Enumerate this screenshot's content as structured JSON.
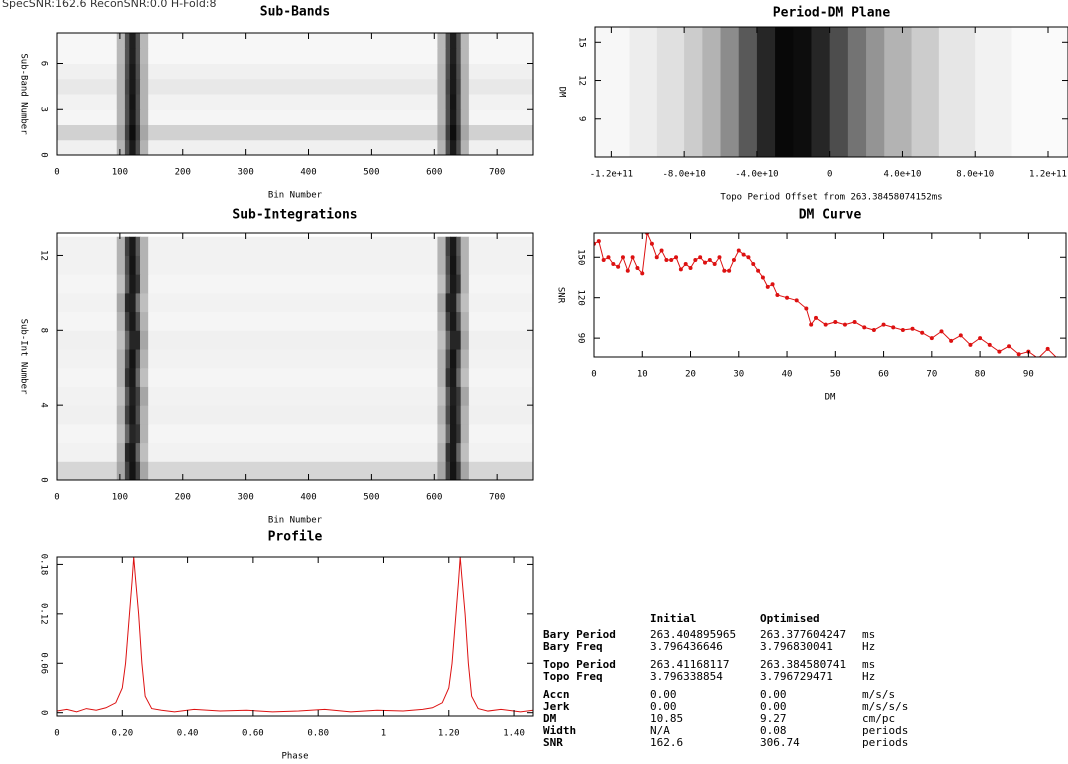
{
  "header": "SpecSNR:162.6   ReconSNR:0.0   H-Fold:8",
  "chart_data": [
    {
      "type": "heatmap",
      "title": "Sub-Bands",
      "x_label": "Bin Number",
      "y_label": "Sub-Band Number",
      "xlim": [
        0,
        757
      ],
      "ylim": [
        0,
        8
      ],
      "xticks": [
        0,
        100,
        200,
        300,
        400,
        500,
        600,
        700
      ],
      "yticks": [
        0,
        3,
        6
      ],
      "x_edges": [
        0,
        95,
        108,
        115,
        125,
        132,
        145,
        605,
        618,
        625,
        635,
        642,
        655,
        757
      ],
      "y_edges": [
        0,
        1,
        2,
        3,
        4,
        5,
        6,
        7,
        8
      ],
      "z": [
        [
          0.06,
          0.3,
          0.7,
          0.9,
          0.7,
          0.3,
          0.06,
          0.3,
          0.7,
          0.9,
          0.7,
          0.3,
          0.06
        ],
        [
          0.18,
          0.35,
          0.75,
          0.95,
          0.75,
          0.35,
          0.18,
          0.35,
          0.75,
          0.95,
          0.75,
          0.35,
          0.18
        ],
        [
          0.04,
          0.3,
          0.7,
          0.9,
          0.7,
          0.3,
          0.04,
          0.3,
          0.7,
          0.9,
          0.7,
          0.3,
          0.04
        ],
        [
          0.05,
          0.3,
          0.7,
          0.92,
          0.7,
          0.3,
          0.05,
          0.3,
          0.7,
          0.92,
          0.7,
          0.3,
          0.05
        ],
        [
          0.09,
          0.3,
          0.72,
          0.9,
          0.72,
          0.3,
          0.09,
          0.3,
          0.72,
          0.9,
          0.72,
          0.3,
          0.09
        ],
        [
          0.06,
          0.3,
          0.7,
          0.9,
          0.7,
          0.3,
          0.06,
          0.3,
          0.7,
          0.9,
          0.7,
          0.3,
          0.06
        ],
        [
          0.03,
          0.28,
          0.68,
          0.88,
          0.68,
          0.28,
          0.03,
          0.28,
          0.68,
          0.88,
          0.68,
          0.28,
          0.03
        ],
        [
          0.03,
          0.28,
          0.68,
          0.88,
          0.68,
          0.28,
          0.03,
          0.28,
          0.68,
          0.88,
          0.68,
          0.28,
          0.03
        ]
      ]
    },
    {
      "type": "heatmap",
      "title": "Period-DM Plane",
      "x_label": "Topo Period Offset from 263.38458074152ms",
      "y_label": "DM",
      "xlim": [
        -129000000000,
        131000000000
      ],
      "ylim": [
        6,
        16.2
      ],
      "xticks": [
        {
          "value": -120000000000,
          "label": "-1.2e+11"
        },
        {
          "value": -80000000000,
          "label": "-8.0e+10"
        },
        {
          "value": -40000000000,
          "label": "-4.0e+10"
        },
        0,
        {
          "value": 40000000000,
          "label": "4.0e+10"
        },
        {
          "value": 80000000000,
          "label": "8.0e+10"
        },
        {
          "value": 120000000000,
          "label": "1.2e+11"
        }
      ],
      "yticks": [
        9,
        12,
        15
      ],
      "x_edges": [
        -129000000000,
        -110000000000,
        -95000000000,
        -80000000000,
        -70000000000,
        -60000000000,
        -50000000000,
        -40000000000,
        -30000000000,
        -20000000000,
        -10000000000,
        0,
        10000000000,
        20000000000,
        30000000000,
        45000000000,
        60000000000,
        80000000000,
        100000000000,
        131000000000
      ],
      "y_edges": [
        6,
        16.2
      ],
      "z": [
        [
          0.03,
          0.07,
          0.12,
          0.2,
          0.3,
          0.45,
          0.65,
          0.85,
          0.97,
          0.95,
          0.85,
          0.7,
          0.55,
          0.42,
          0.3,
          0.2,
          0.1,
          0.05,
          0.02
        ]
      ]
    },
    {
      "type": "heatmap",
      "title": "Sub-Integrations",
      "x_label": "Bin Number",
      "y_label": "Sub-Int Number",
      "xlim": [
        0,
        757
      ],
      "ylim": [
        0,
        13.2
      ],
      "xticks": [
        0,
        100,
        200,
        300,
        400,
        500,
        600,
        700
      ],
      "yticks": [
        0,
        4,
        8,
        12
      ],
      "x_edges": [
        0,
        95,
        108,
        115,
        125,
        132,
        145,
        605,
        618,
        625,
        635,
        642,
        655,
        757
      ],
      "y_edges": [
        0,
        1,
        2,
        3,
        4,
        5,
        6,
        7,
        8,
        9,
        10,
        11,
        12,
        13
      ],
      "z": [
        [
          0.16,
          0.35,
          0.75,
          0.92,
          0.75,
          0.35,
          0.16,
          0.35,
          0.75,
          0.92,
          0.75,
          0.35,
          0.16
        ],
        [
          0.05,
          0.3,
          0.85,
          0.9,
          0.6,
          0.25,
          0.05,
          0.3,
          0.8,
          0.9,
          0.6,
          0.25,
          0.05
        ],
        [
          0.04,
          0.25,
          0.6,
          0.85,
          0.8,
          0.3,
          0.04,
          0.25,
          0.6,
          0.9,
          0.8,
          0.3,
          0.04
        ],
        [
          0.06,
          0.3,
          0.75,
          0.9,
          0.7,
          0.3,
          0.06,
          0.3,
          0.7,
          0.9,
          0.75,
          0.3,
          0.06
        ],
        [
          0.05,
          0.25,
          0.65,
          0.88,
          0.75,
          0.35,
          0.05,
          0.25,
          0.65,
          0.88,
          0.78,
          0.35,
          0.05
        ],
        [
          0.04,
          0.3,
          0.8,
          0.9,
          0.6,
          0.25,
          0.04,
          0.3,
          0.8,
          0.9,
          0.6,
          0.25,
          0.04
        ],
        [
          0.05,
          0.3,
          0.7,
          0.92,
          0.7,
          0.3,
          0.05,
          0.3,
          0.7,
          0.92,
          0.7,
          0.3,
          0.05
        ],
        [
          0.06,
          0.25,
          0.6,
          0.85,
          0.85,
          0.35,
          0.06,
          0.25,
          0.6,
          0.85,
          0.85,
          0.35,
          0.06
        ],
        [
          0.04,
          0.3,
          0.75,
          0.9,
          0.7,
          0.3,
          0.04,
          0.3,
          0.75,
          0.9,
          0.7,
          0.3,
          0.04
        ],
        [
          0.05,
          0.35,
          0.85,
          0.88,
          0.55,
          0.25,
          0.05,
          0.35,
          0.85,
          0.88,
          0.55,
          0.25,
          0.05
        ],
        [
          0.04,
          0.25,
          0.65,
          0.9,
          0.8,
          0.3,
          0.04,
          0.25,
          0.65,
          0.9,
          0.8,
          0.3,
          0.04
        ],
        [
          0.05,
          0.3,
          0.7,
          0.92,
          0.7,
          0.3,
          0.05,
          0.3,
          0.7,
          0.92,
          0.7,
          0.3,
          0.05
        ],
        [
          0.05,
          0.3,
          0.75,
          0.9,
          0.65,
          0.3,
          0.05,
          0.3,
          0.75,
          0.9,
          0.65,
          0.3,
          0.05
        ]
      ]
    },
    {
      "type": "line",
      "title": "DM Curve",
      "x_label": "DM",
      "y_label": "SNR",
      "color": "#dd1111",
      "markers": true,
      "xlim": [
        0,
        97.8
      ],
      "ylim": [
        76,
        168
      ],
      "xticks": [
        0,
        10,
        20,
        30,
        40,
        50,
        60,
        70,
        80,
        90
      ],
      "yticks": [
        90,
        120,
        150
      ],
      "x": [
        0,
        1,
        2,
        3,
        4,
        5,
        6,
        7,
        8,
        9,
        10,
        11,
        12,
        13,
        14,
        15,
        16,
        17,
        18,
        19,
        20,
        21,
        22,
        23,
        24,
        25,
        26,
        27,
        28,
        29,
        30,
        31,
        32,
        33,
        34,
        35,
        36,
        37,
        38,
        40,
        42,
        44,
        45,
        46,
        48,
        50,
        52,
        54,
        56,
        58,
        60,
        62,
        64,
        66,
        68,
        70,
        72,
        74,
        76,
        78,
        80,
        82,
        84,
        86,
        88,
        90,
        92,
        94,
        96
      ],
      "values": [
        160,
        162,
        148,
        150,
        145,
        143,
        150,
        140,
        150,
        142,
        138,
        168,
        160,
        150,
        155,
        148,
        148,
        150,
        141,
        145,
        142,
        148,
        150,
        146,
        148,
        145,
        150,
        140,
        140,
        148,
        155,
        152,
        150,
        145,
        140,
        135,
        128,
        130,
        122,
        120,
        118,
        112,
        100,
        105,
        100,
        102,
        100,
        102,
        98,
        96,
        100,
        98,
        96,
        97,
        94,
        90,
        95,
        88,
        92,
        85,
        90,
        85,
        80,
        84,
        78,
        80,
        75,
        82,
        75
      ]
    },
    {
      "type": "line",
      "title": "Profile",
      "x_label": "Phase",
      "color": "#dd1111",
      "markers": false,
      "xlim": [
        0,
        1.458
      ],
      "ylim": [
        -0.004,
        0.189
      ],
      "xticks": [
        0,
        {
          "value": 0.2,
          "label": "0.20"
        },
        {
          "value": 0.4,
          "label": "0.40"
        },
        {
          "value": 0.6,
          "label": "0.60"
        },
        {
          "value": 0.8,
          "label": "0.80"
        },
        1,
        {
          "value": 1.2,
          "label": "1.20"
        },
        {
          "value": 1.4,
          "label": "1.40"
        }
      ],
      "yticks": [
        0,
        0.06,
        0.12,
        0.18
      ],
      "x": [
        0,
        0.03,
        0.06,
        0.09,
        0.12,
        0.15,
        0.18,
        0.2,
        0.21,
        0.22,
        0.23,
        0.235,
        0.24,
        0.25,
        0.26,
        0.27,
        0.29,
        0.32,
        0.36,
        0.42,
        0.5,
        0.58,
        0.66,
        0.74,
        0.82,
        0.9,
        0.98,
        1.06,
        1.12,
        1.15,
        1.18,
        1.2,
        1.21,
        1.22,
        1.23,
        1.235,
        1.24,
        1.25,
        1.26,
        1.27,
        1.29,
        1.32,
        1.36,
        1.42,
        1.458
      ],
      "values": [
        0.002,
        0.004,
        0.001,
        0.005,
        0.003,
        0.006,
        0.012,
        0.03,
        0.06,
        0.11,
        0.16,
        0.189,
        0.165,
        0.12,
        0.06,
        0.02,
        0.005,
        0.003,
        0.001,
        0.004,
        0.002,
        0.003,
        0.001,
        0.002,
        0.004,
        0.001,
        0.003,
        0.002,
        0.004,
        0.006,
        0.012,
        0.03,
        0.06,
        0.11,
        0.16,
        0.189,
        0.165,
        0.12,
        0.06,
        0.02,
        0.005,
        0.002,
        0.004,
        0.001,
        0.003
      ]
    }
  ],
  "table": {
    "columns": [
      "Initial",
      "Optimised"
    ],
    "groups": [
      [
        [
          "Bary Period",
          "263.404895965",
          "263.377604247",
          "ms"
        ],
        [
          "Bary Freq",
          "3.796436646",
          "3.796830041",
          "Hz"
        ]
      ],
      [
        [
          "Topo Period",
          "263.41168117",
          "263.384580741",
          "ms"
        ],
        [
          "Topo Freq",
          "3.796338854",
          "3.796729471",
          "Hz"
        ]
      ],
      [
        [
          "Accn",
          "0.00",
          "0.00",
          "m/s/s"
        ],
        [
          "Jerk",
          "0.00",
          "0.00",
          "m/s/s/s"
        ],
        [
          "DM",
          "10.85",
          "9.27",
          "cm/pc"
        ],
        [
          "Width",
          "N/A",
          "0.08",
          "periods"
        ],
        [
          "SNR",
          "162.6",
          "306.74",
          "periods"
        ]
      ]
    ]
  }
}
